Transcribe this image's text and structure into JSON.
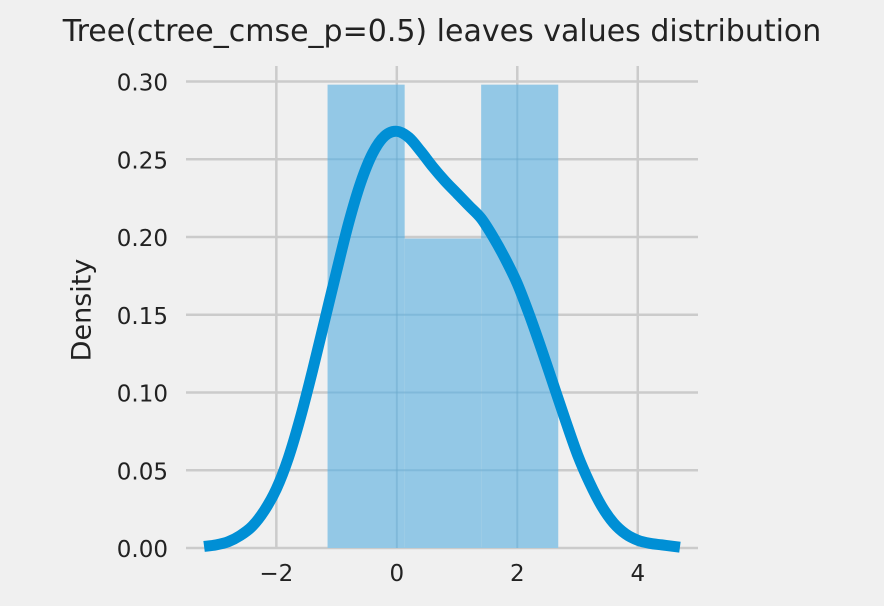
{
  "chart_data": {
    "type": "histogram",
    "title": "Tree(ctree_cmse_p=0.5) leaves values distribution",
    "xlabel": "",
    "ylabel": "Density",
    "xlim": [
      -3.5,
      5.0
    ],
    "ylim": [
      0.0,
      0.31
    ],
    "xticks": [
      -2,
      0,
      2,
      4
    ],
    "xtick_labels": [
      "−2",
      "0",
      "2",
      "4"
    ],
    "yticks": [
      0.0,
      0.05,
      0.1,
      0.15,
      0.2,
      0.25,
      0.3
    ],
    "ytick_labels": [
      "0.00",
      "0.05",
      "0.10",
      "0.15",
      "0.20",
      "0.25",
      "0.30"
    ],
    "grid": true,
    "histogram": {
      "bin_edges": [
        -1.15,
        0.13,
        1.4,
        2.68
      ],
      "density": [
        0.298,
        0.199,
        0.298
      ],
      "color": "#93c8e6"
    },
    "kde": {
      "color": "#008fd5",
      "x": [
        -3.2,
        -3.0,
        -2.8,
        -2.6,
        -2.4,
        -2.2,
        -2.0,
        -1.8,
        -1.6,
        -1.4,
        -1.2,
        -1.0,
        -0.8,
        -0.6,
        -0.4,
        -0.2,
        0.0,
        0.2,
        0.4,
        0.6,
        0.8,
        1.0,
        1.2,
        1.4,
        1.6,
        1.8,
        2.0,
        2.2,
        2.4,
        2.6,
        2.8,
        3.0,
        3.2,
        3.4,
        3.6,
        3.8,
        4.0,
        4.2,
        4.4,
        4.6,
        4.7
      ],
      "y": [
        0.001,
        0.002,
        0.004,
        0.008,
        0.014,
        0.024,
        0.038,
        0.058,
        0.084,
        0.114,
        0.146,
        0.178,
        0.209,
        0.235,
        0.254,
        0.265,
        0.268,
        0.264,
        0.255,
        0.245,
        0.236,
        0.228,
        0.22,
        0.212,
        0.2,
        0.186,
        0.17,
        0.15,
        0.128,
        0.105,
        0.082,
        0.06,
        0.042,
        0.027,
        0.016,
        0.009,
        0.005,
        0.003,
        0.002,
        0.001,
        0.0005
      ]
    }
  },
  "colors": {
    "background": "#f0f0f0",
    "grid": "#cbcbcb",
    "bar": "#93c8e6",
    "line": "#008fd5"
  }
}
